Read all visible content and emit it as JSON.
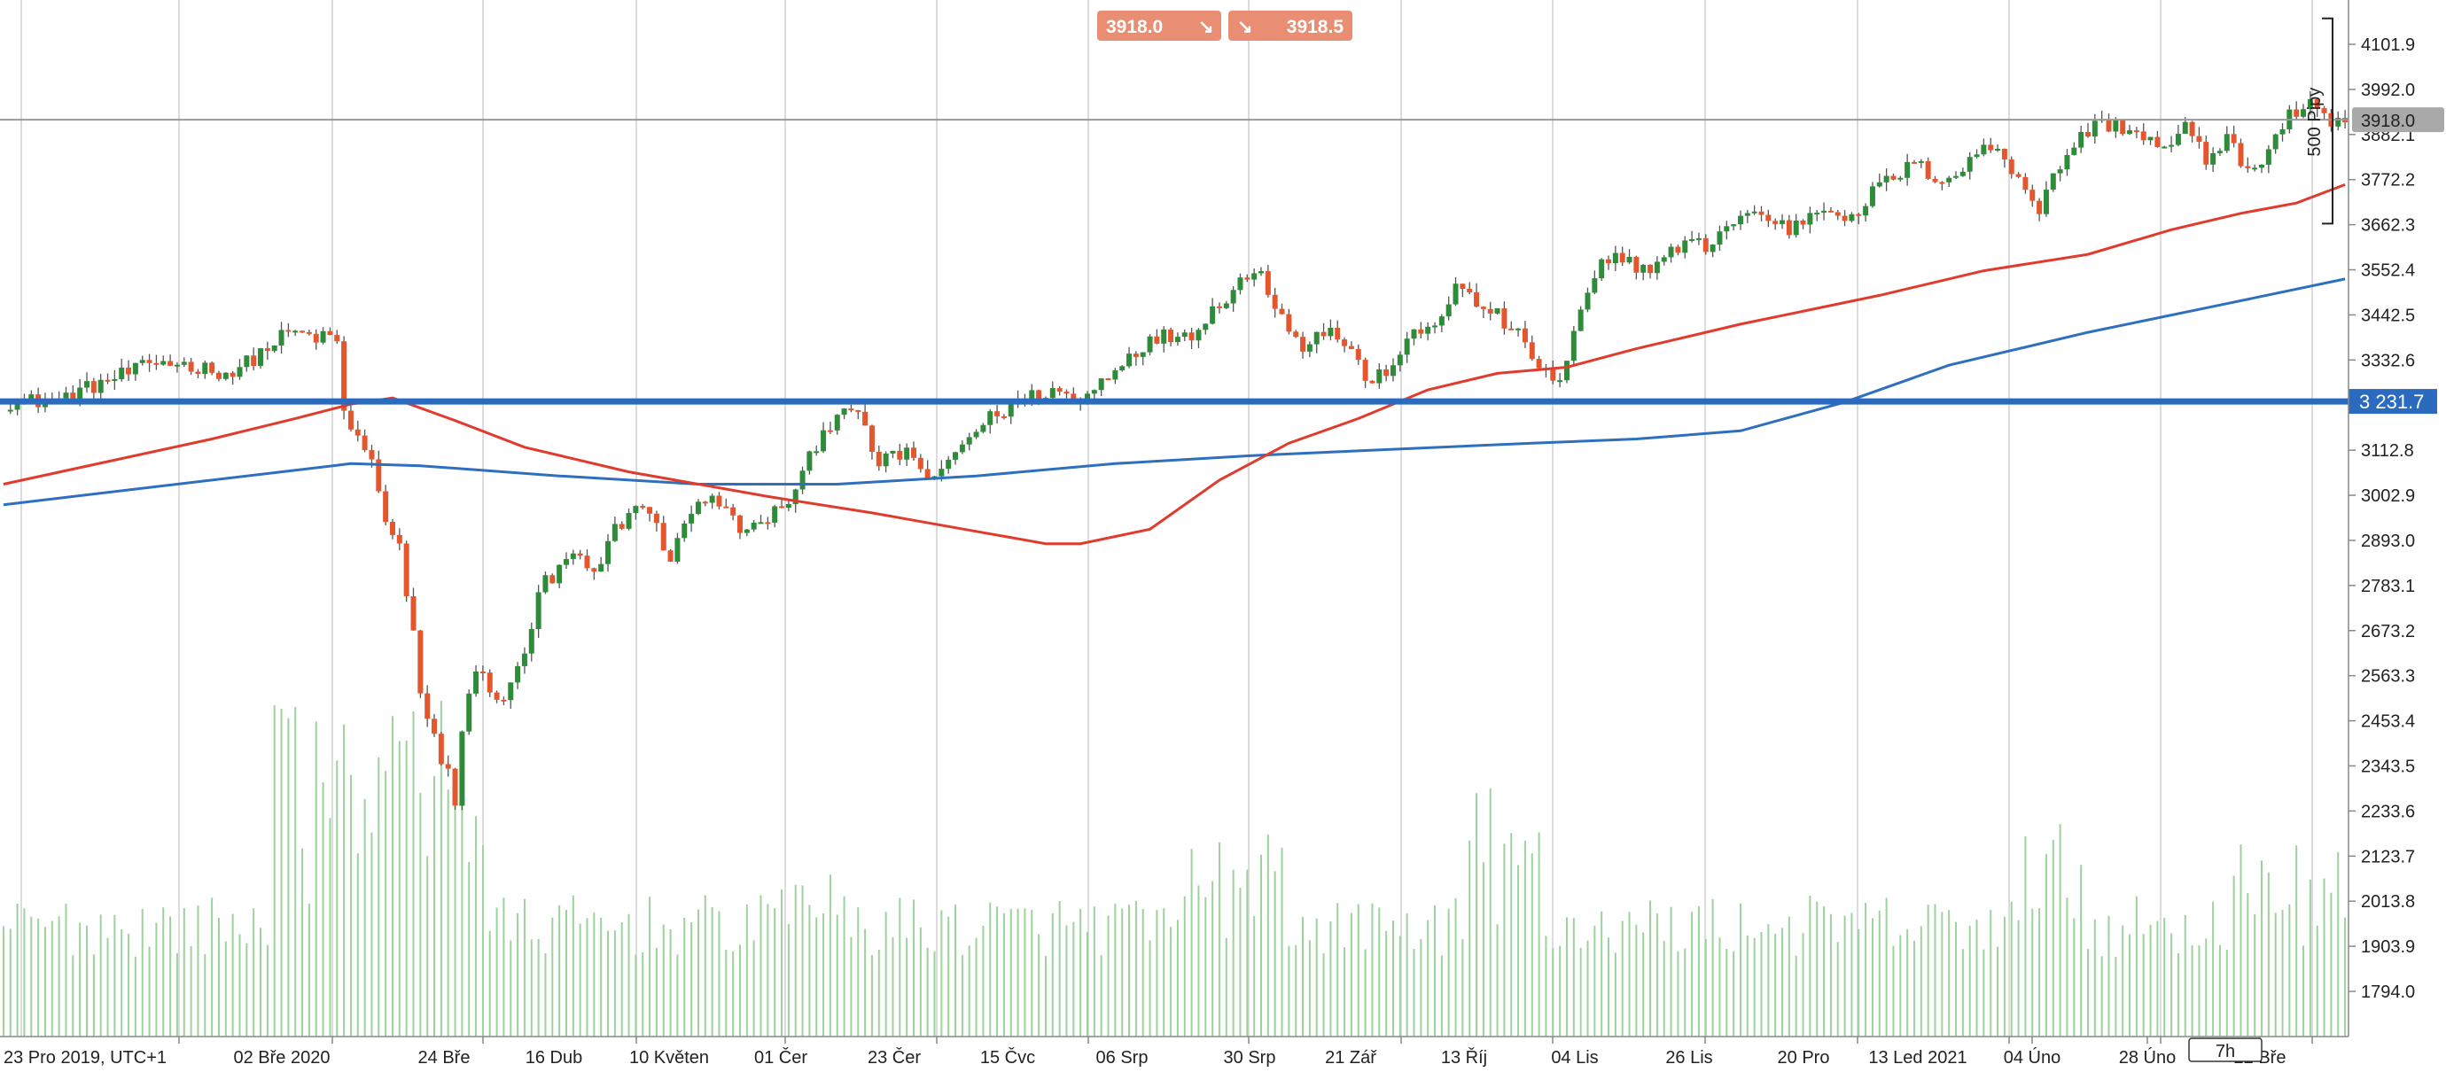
{
  "chart_data": {
    "type": "candlestick",
    "x_start_label": "23 Pro 2019, UTC+1",
    "x_tick_labels": [
      "02 Bře 2020",
      "24 Bře",
      "16 Dub",
      "10 Květen",
      "01 Čer",
      "23 Čer",
      "15 Čvc",
      "06 Srp",
      "30 Srp",
      "21 Zář",
      "13 Říj",
      "04 Lis",
      "26 Lis",
      "20 Pro",
      "13 Led 2021",
      "04 Úno",
      "28 Úno",
      "22 Bře"
    ],
    "y_tick_labels": [
      "4101.9",
      "3992.0",
      "3882.1",
      "3772.2",
      "3662.3",
      "3552.4",
      "3442.5",
      "3332.6",
      "3112.8",
      "3002.9",
      "2893.0",
      "2783.1",
      "2673.2",
      "2563.3",
      "2453.4",
      "2343.5",
      "2233.6",
      "2123.7",
      "2013.8",
      "1903.9",
      "1794.0"
    ],
    "y_ticks": [
      4101.9,
      3992.0,
      3882.1,
      3772.2,
      3662.3,
      3552.4,
      3442.5,
      3332.6,
      3112.8,
      3002.9,
      2893.0,
      2783.1,
      2673.2,
      2563.3,
      2453.4,
      2343.5,
      2233.6,
      2123.7,
      2013.8,
      1903.9,
      1794.0
    ],
    "ylim": [
      1740,
      4190
    ],
    "current_price_label": "3918.0",
    "current_price": 3918.0,
    "horizontal_level_label": "3 231.7",
    "horizontal_level": 3231.7,
    "range_bracket_label": "500 Pipy",
    "range_bracket": [
      3665,
      4165
    ],
    "bid_label": "3918.0",
    "ask_label": "3918.5",
    "timeframe_label": "7h",
    "price_anchors": [
      [
        0,
        3230
      ],
      [
        8,
        3235
      ],
      [
        16,
        3290
      ],
      [
        23,
        3330
      ],
      [
        33,
        3300
      ],
      [
        41,
        3400
      ],
      [
        48,
        3380
      ],
      [
        49,
        3200
      ],
      [
        53,
        3080
      ],
      [
        55,
        2950
      ],
      [
        57,
        2870
      ],
      [
        59,
        2640
      ],
      [
        61,
        2420
      ],
      [
        63,
        2380
      ],
      [
        65,
        2260
      ],
      [
        66,
        2440
      ],
      [
        69,
        2600
      ],
      [
        72,
        2470
      ],
      [
        75,
        2640
      ],
      [
        78,
        2780
      ],
      [
        82,
        2860
      ],
      [
        85,
        2800
      ],
      [
        88,
        2920
      ],
      [
        92,
        2990
      ],
      [
        96,
        2850
      ],
      [
        100,
        3000
      ],
      [
        103,
        2980
      ],
      [
        107,
        2910
      ],
      [
        111,
        2960
      ],
      [
        114,
        3010
      ],
      [
        117,
        3130
      ],
      [
        121,
        3230
      ],
      [
        123,
        3190
      ],
      [
        126,
        3080
      ],
      [
        130,
        3110
      ],
      [
        134,
        3030
      ],
      [
        137,
        3110
      ],
      [
        141,
        3180
      ],
      [
        144,
        3210
      ],
      [
        147,
        3240
      ],
      [
        151,
        3260
      ],
      [
        155,
        3230
      ],
      [
        159,
        3300
      ],
      [
        163,
        3360
      ],
      [
        167,
        3390
      ],
      [
        171,
        3400
      ],
      [
        175,
        3470
      ],
      [
        178,
        3530
      ],
      [
        181,
        3540
      ],
      [
        184,
        3440
      ],
      [
        187,
        3370
      ],
      [
        191,
        3410
      ],
      [
        194,
        3350
      ],
      [
        197,
        3270
      ],
      [
        200,
        3330
      ],
      [
        203,
        3390
      ],
      [
        206,
        3420
      ],
      [
        209,
        3510
      ],
      [
        212,
        3470
      ],
      [
        215,
        3440
      ],
      [
        218,
        3390
      ],
      [
        221,
        3320
      ],
      [
        224,
        3270
      ],
      [
        227,
        3450
      ],
      [
        230,
        3560
      ],
      [
        233,
        3590
      ],
      [
        236,
        3550
      ],
      [
        239,
        3580
      ],
      [
        242,
        3620
      ],
      [
        245,
        3610
      ],
      [
        248,
        3660
      ],
      [
        251,
        3690
      ],
      [
        254,
        3680
      ],
      [
        257,
        3650
      ],
      [
        260,
        3690
      ],
      [
        263,
        3710
      ],
      [
        266,
        3670
      ],
      [
        269,
        3740
      ],
      [
        272,
        3780
      ],
      [
        275,
        3810
      ],
      [
        278,
        3780
      ],
      [
        281,
        3780
      ],
      [
        284,
        3840
      ],
      [
        287,
        3850
      ],
      [
        290,
        3780
      ],
      [
        293,
        3700
      ],
      [
        296,
        3810
      ],
      [
        299,
        3880
      ],
      [
        302,
        3910
      ],
      [
        305,
        3900
      ],
      [
        308,
        3880
      ],
      [
        311,
        3840
      ],
      [
        314,
        3900
      ],
      [
        317,
        3820
      ],
      [
        320,
        3880
      ],
      [
        323,
        3780
      ],
      [
        326,
        3850
      ],
      [
        329,
        3930
      ],
      [
        332,
        3950
      ],
      [
        335,
        3900
      ],
      [
        337,
        3915
      ]
    ],
    "ma_fast": [
      [
        0,
        3030
      ],
      [
        15,
        3085
      ],
      [
        30,
        3140
      ],
      [
        42,
        3190
      ],
      [
        50,
        3225
      ],
      [
        56,
        3240
      ],
      [
        65,
        3185
      ],
      [
        75,
        3120
      ],
      [
        90,
        3060
      ],
      [
        110,
        3000
      ],
      [
        125,
        2960
      ],
      [
        140,
        2915
      ],
      [
        150,
        2885
      ],
      [
        155,
        2885
      ],
      [
        165,
        2920
      ],
      [
        175,
        3040
      ],
      [
        185,
        3130
      ],
      [
        195,
        3190
      ],
      [
        205,
        3260
      ],
      [
        215,
        3300
      ],
      [
        225,
        3315
      ],
      [
        235,
        3360
      ],
      [
        250,
        3420
      ],
      [
        270,
        3490
      ],
      [
        285,
        3550
      ],
      [
        300,
        3590
      ],
      [
        312,
        3650
      ],
      [
        322,
        3690
      ],
      [
        330,
        3715
      ],
      [
        337,
        3760
      ]
    ],
    "ma_slow": [
      [
        0,
        2980
      ],
      [
        20,
        3020
      ],
      [
        40,
        3060
      ],
      [
        50,
        3080
      ],
      [
        60,
        3075
      ],
      [
        80,
        3050
      ],
      [
        100,
        3030
      ],
      [
        120,
        3030
      ],
      [
        140,
        3050
      ],
      [
        160,
        3080
      ],
      [
        180,
        3100
      ],
      [
        200,
        3115
      ],
      [
        220,
        3130
      ],
      [
        235,
        3140
      ],
      [
        250,
        3160
      ],
      [
        265,
        3230
      ],
      [
        280,
        3320
      ],
      [
        300,
        3400
      ],
      [
        320,
        3470
      ],
      [
        337,
        3530
      ]
    ]
  }
}
